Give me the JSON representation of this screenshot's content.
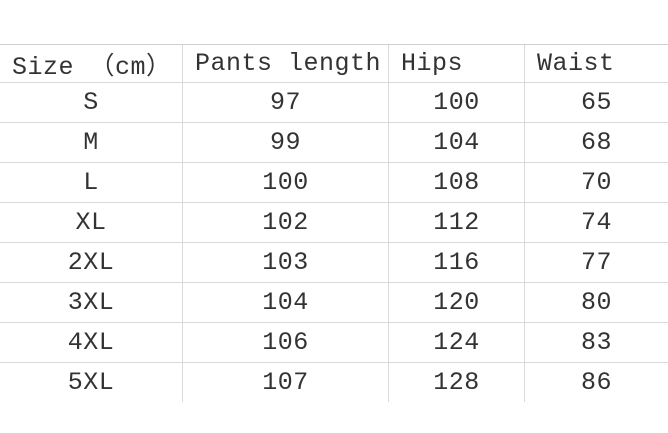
{
  "colors": {
    "background": "#ffffff",
    "grid_border": "#d9d9d9",
    "top_border": "#cfcfcf",
    "text": "#333333"
  },
  "table": {
    "headers": [
      "Size （cm）",
      "Pants length",
      "Hips",
      "Waist"
    ],
    "rows": [
      [
        "S",
        "97",
        "100",
        "65"
      ],
      [
        "M",
        "99",
        "104",
        "68"
      ],
      [
        "L",
        "100",
        "108",
        "70"
      ],
      [
        "XL",
        "102",
        "112",
        "74"
      ],
      [
        "2XL",
        "103",
        "116",
        "77"
      ],
      [
        "3XL",
        "104",
        "120",
        "80"
      ],
      [
        "4XL",
        "106",
        "124",
        "83"
      ],
      [
        "5XL",
        "107",
        "128",
        "86"
      ]
    ]
  },
  "chart_data": {
    "type": "table",
    "title": "",
    "columns": [
      "Size （cm）",
      "Pants length",
      "Hips",
      "Waist"
    ],
    "rows": [
      {
        "size": "S",
        "pants_length": 97,
        "hips": 100,
        "waist": 65
      },
      {
        "size": "M",
        "pants_length": 99,
        "hips": 104,
        "waist": 68
      },
      {
        "size": "L",
        "pants_length": 100,
        "hips": 108,
        "waist": 70
      },
      {
        "size": "XL",
        "pants_length": 102,
        "hips": 112,
        "waist": 74
      },
      {
        "size": "2XL",
        "pants_length": 103,
        "hips": 116,
        "waist": 77
      },
      {
        "size": "3XL",
        "pants_length": 104,
        "hips": 120,
        "waist": 80
      },
      {
        "size": "4XL",
        "pants_length": 106,
        "hips": 124,
        "waist": 83
      },
      {
        "size": "5XL",
        "pants_length": 107,
        "hips": 128,
        "waist": 86
      }
    ],
    "layout_hints": {
      "grid": "horizontal row separators + 3 vertical column separators",
      "outer_left_right_borders": false,
      "bottom_border_on_last_row": false,
      "header_alignment": "left",
      "data_alignment": "center"
    }
  }
}
